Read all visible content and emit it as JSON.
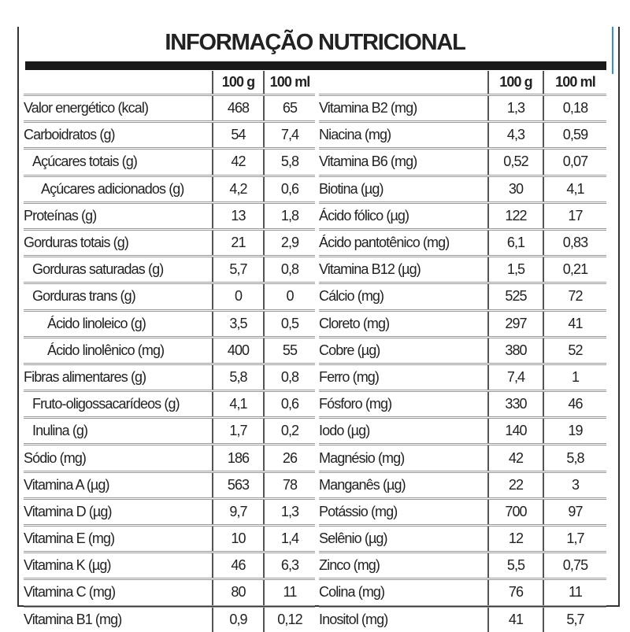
{
  "title": "INFORMAÇÃO NUTRICIONAL",
  "columns": {
    "per100g": "100 g",
    "per100ml": "100 ml"
  },
  "colors": {
    "bar": "#1a1a1a",
    "rule": "#999999",
    "accent_edge": "#3a8fd0"
  },
  "left_rows": [
    {
      "label": "Valor energético (kcal)",
      "indent": 0,
      "g": "468",
      "ml": "65"
    },
    {
      "label": "Carboidratos (g)",
      "indent": 0,
      "g": "54",
      "ml": "7,4"
    },
    {
      "label": "Açúcares totais (g)",
      "indent": 1,
      "g": "42",
      "ml": "5,8"
    },
    {
      "label": "Açúcares adicionados (g)",
      "indent": 2,
      "g": "4,2",
      "ml": "0,6"
    },
    {
      "label": "Proteínas (g)",
      "indent": 0,
      "g": "13",
      "ml": "1,8"
    },
    {
      "label": "Gorduras totais (g)",
      "indent": 0,
      "g": "21",
      "ml": "2,9"
    },
    {
      "label": "Gorduras saturadas (g)",
      "indent": 1,
      "g": "5,7",
      "ml": "0,8"
    },
    {
      "label": "Gorduras trans (g)",
      "indent": 1,
      "g": "0",
      "ml": "0"
    },
    {
      "label": "Ácido linoleico (g)",
      "indent": 3,
      "g": "3,5",
      "ml": "0,5"
    },
    {
      "label": "Ácido linolênico (mg)",
      "indent": 3,
      "g": "400",
      "ml": "55"
    },
    {
      "label": "Fibras alimentares (g)",
      "indent": 0,
      "g": "5,8",
      "ml": "0,8"
    },
    {
      "label": "Fruto-oligossacarídeos (g)",
      "indent": 1,
      "g": "4,1",
      "ml": "0,6"
    },
    {
      "label": "Inulina (g)",
      "indent": 1,
      "g": "1,7",
      "ml": "0,2"
    },
    {
      "label": "Sódio (mg)",
      "indent": 0,
      "g": "186",
      "ml": "26"
    },
    {
      "label": "Vitamina A (µg)",
      "indent": 0,
      "g": "563",
      "ml": "78"
    },
    {
      "label": "Vitamina D (µg)",
      "indent": 0,
      "g": "9,7",
      "ml": "1,3"
    },
    {
      "label": "Vitamina E (mg)",
      "indent": 0,
      "g": "10",
      "ml": "1,4"
    },
    {
      "label": "Vitamina K (µg)",
      "indent": 0,
      "g": "46",
      "ml": "6,3"
    },
    {
      "label": "Vitamina C (mg)",
      "indent": 0,
      "g": "80",
      "ml": "11"
    },
    {
      "label": "Vitamina B1 (mg)",
      "indent": 0,
      "g": "0,9",
      "ml": "0,12"
    }
  ],
  "right_rows": [
    {
      "label": "Vitamina B2 (mg)",
      "g": "1,3",
      "ml": "0,18"
    },
    {
      "label": "Niacina (mg)",
      "g": "4,3",
      "ml": "0,59"
    },
    {
      "label": "Vitamina B6 (mg)",
      "g": "0,52",
      "ml": "0,07"
    },
    {
      "label": "Biotina (µg)",
      "g": "30",
      "ml": "4,1"
    },
    {
      "label": "Ácido fólico (µg)",
      "g": "122",
      "ml": "17"
    },
    {
      "label": "Ácido pantotênico (mg)",
      "g": "6,1",
      "ml": "0,83"
    },
    {
      "label": "Vitamina B12 (µg)",
      "g": "1,5",
      "ml": "0,21"
    },
    {
      "label": "Cálcio (mg)",
      "g": "525",
      "ml": "72"
    },
    {
      "label": "Cloreto (mg)",
      "g": "297",
      "ml": "41"
    },
    {
      "label": "Cobre (µg)",
      "g": "380",
      "ml": "52"
    },
    {
      "label": "Ferro (mg)",
      "g": "7,4",
      "ml": "1"
    },
    {
      "label": "Fósforo (mg)",
      "g": "330",
      "ml": "46"
    },
    {
      "label": "Iodo (µg)",
      "g": "140",
      "ml": "19"
    },
    {
      "label": "Magnésio (mg)",
      "g": "42",
      "ml": "5,8"
    },
    {
      "label": "Manganês (µg)",
      "g": "22",
      "ml": "3"
    },
    {
      "label": "Potássio (mg)",
      "g": "700",
      "ml": "97"
    },
    {
      "label": "Selênio (µg)",
      "g": "12",
      "ml": "1,7"
    },
    {
      "label": "Zinco (mg)",
      "g": "5,5",
      "ml": "0,75"
    },
    {
      "label": "Colina (mg)",
      "g": "76",
      "ml": "11"
    },
    {
      "label": "Inositol (mg)",
      "g": "41",
      "ml": "5,7"
    }
  ]
}
